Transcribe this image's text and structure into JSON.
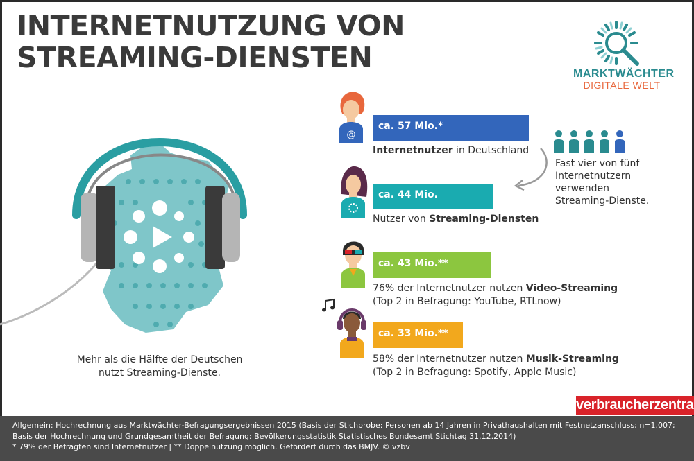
{
  "title": {
    "line1": "INTERNETNUTZUNG VON",
    "line2": "STREAMING-DIENSTEN"
  },
  "logo": {
    "name": "MARKTWÄCHTER",
    "subtitle": "DIGITALE WELT",
    "icon": "magnifier-icon",
    "color_teal": "#2a8b8f",
    "color_orange": "#e8673c"
  },
  "map_caption": {
    "line1": "Mehr als die Hälfte der Deutschen",
    "line2": "nutzt Streaming-Dienste."
  },
  "stats": [
    {
      "value_label": "ca. 57 Mio.*",
      "value_mio": 57,
      "color": "#3366bb",
      "desc_bold": "Internetnutzer",
      "desc_rest": " in Deutschland",
      "desc_prefix": "",
      "desc_line2": "",
      "avatar": "person-icon"
    },
    {
      "value_label": "ca. 44 Mio.",
      "value_mio": 44,
      "color": "#1aabb0",
      "desc_prefix": "Nutzer von ",
      "desc_bold": "Streaming-Diensten",
      "desc_rest": "",
      "desc_line2": "",
      "avatar": "person-icon"
    },
    {
      "value_label": "ca. 43 Mio.**",
      "value_mio": 43,
      "color": "#8cc63f",
      "desc_prefix": "76% der Internetnutzer nutzen ",
      "desc_bold": "Video-Streaming",
      "desc_rest": "",
      "desc_line2": "(Top 2 in Befragung: YouTube, RTLnow)",
      "avatar": "3d-glasses-person-icon"
    },
    {
      "value_label": "ca. 33 Mio.**",
      "value_mio": 33,
      "color": "#f2a81d",
      "desc_prefix": "58%  der Internetnutzer nutzen ",
      "desc_bold": "Musik-Streaming",
      "desc_rest": "",
      "desc_line2": "(Top 2 in Befragung: Spotify, Apple Music)",
      "avatar": "headphones-person-icon"
    }
  ],
  "side_note": {
    "line1": "Fast vier von fünf",
    "line2": "Internetnutzern",
    "line3": "verwenden",
    "line4": "Streaming-Dienste.",
    "icon": "people-icon"
  },
  "badge": "verbraucherzentrale",
  "footer": {
    "line1": "Allgemein: Hochrechnung aus Marktwächter-Befragungsergebnissen 2015 (Basis der Stichprobe: Personen ab 14 Jahren in Privathaushalten mit Festnetzanschluss; n=1.007;",
    "line2": "Basis der Hochrechnung und Grundgesamtheit der Befragung: Bevölkerungsstatistik Statistisches Bundesamt Stichtag 31.12.2014)",
    "line3": "* 79% der Befragten sind Internetnutzer | ** Doppelnutzung möglich. Gefördert durch das BMJV. © vzbv"
  }
}
